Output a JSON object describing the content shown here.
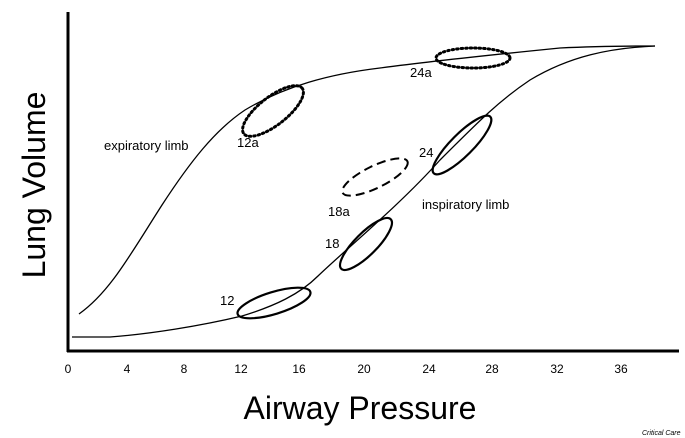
{
  "axes": {
    "x_title": "Airway Pressure",
    "y_title": "Lung Volume",
    "x_ticks": [
      "0",
      "4",
      "8",
      "12",
      "16",
      "20",
      "24",
      "28",
      "32",
      "36"
    ]
  },
  "curves": {
    "expiratory_label": "expiratory limb",
    "inspiratory_label": "inspiratory limb"
  },
  "markers": {
    "insp_12": "12",
    "insp_18": "18",
    "insp_24": "24",
    "exp_12a": "12a",
    "exp_18a": "18a",
    "exp_24a": "24a"
  },
  "credit": "Critical Care",
  "colors": {
    "line": "#000000",
    "background": "#ffffff"
  }
}
